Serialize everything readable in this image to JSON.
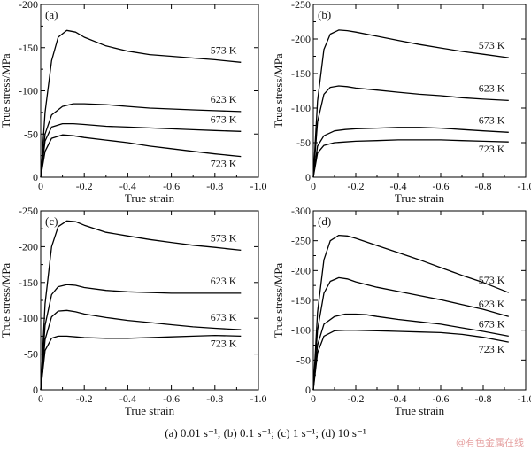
{
  "caption": "(a) 0.01 s⁻¹; (b) 0.1 s⁻¹; (c) 1 s⁻¹; (d) 10 s⁻¹",
  "watermark": "@有色金属在线",
  "colors": {
    "line": "#000000",
    "axis": "#000000",
    "background": "#ffffff"
  },
  "chart_data": [
    {
      "type": "line",
      "panel_label": "(a)",
      "xlabel": "True strain",
      "ylabel": "True stress/MPa",
      "xlim": [
        0,
        -1.0
      ],
      "ylim": [
        0,
        -200
      ],
      "xticks": [
        "0",
        "-0.2",
        "-0.4",
        "-0.6",
        "-0.8",
        "-1.0"
      ],
      "yticks": [
        "0",
        "-50",
        "-100",
        "-150",
        "-200"
      ],
      "grid": false,
      "series": [
        {
          "name": "573 K",
          "x": [
            0,
            -0.02,
            -0.05,
            -0.08,
            -0.12,
            -0.16,
            -0.2,
            -0.3,
            -0.4,
            -0.5,
            -0.6,
            -0.7,
            -0.8,
            -0.92
          ],
          "y": [
            0,
            -75,
            -135,
            -162,
            -170,
            -168,
            -162,
            -152,
            -146,
            -142,
            -140,
            -138,
            -136,
            -133
          ]
        },
        {
          "name": "623 K",
          "x": [
            0,
            -0.02,
            -0.05,
            -0.1,
            -0.15,
            -0.2,
            -0.3,
            -0.4,
            -0.5,
            -0.6,
            -0.7,
            -0.8,
            -0.92
          ],
          "y": [
            0,
            -50,
            -72,
            -82,
            -85,
            -85,
            -84,
            -82,
            -80,
            -79,
            -78,
            -77,
            -76
          ]
        },
        {
          "name": "673 K",
          "x": [
            0,
            -0.02,
            -0.05,
            -0.1,
            -0.15,
            -0.2,
            -0.3,
            -0.4,
            -0.5,
            -0.6,
            -0.7,
            -0.8,
            -0.92
          ],
          "y": [
            0,
            -42,
            -58,
            -62,
            -62,
            -61,
            -59,
            -58,
            -57,
            -56,
            -55,
            -54,
            -53
          ]
        },
        {
          "name": "723 K",
          "x": [
            0,
            -0.02,
            -0.05,
            -0.1,
            -0.15,
            -0.2,
            -0.3,
            -0.4,
            -0.5,
            -0.6,
            -0.7,
            -0.8,
            -0.92
          ],
          "y": [
            0,
            -30,
            -45,
            -49,
            -48,
            -46,
            -43,
            -40,
            -36,
            -33,
            -30,
            -27,
            -24
          ]
        }
      ]
    },
    {
      "type": "line",
      "panel_label": "(b)",
      "xlabel": "True strain",
      "ylabel": "True stress/MPa",
      "xlim": [
        0,
        -1.0
      ],
      "ylim": [
        0,
        -250
      ],
      "xticks": [
        "0",
        "-0.2",
        "-0.4",
        "-0.6",
        "-0.8",
        "-1.0"
      ],
      "yticks": [
        "0",
        "-50",
        "-100",
        "-150",
        "-200",
        "-250"
      ],
      "grid": false,
      "series": [
        {
          "name": "573 K",
          "x": [
            0,
            -0.02,
            -0.05,
            -0.08,
            -0.12,
            -0.16,
            -0.2,
            -0.3,
            -0.4,
            -0.5,
            -0.6,
            -0.7,
            -0.8,
            -0.92
          ],
          "y": [
            0,
            -110,
            -185,
            -207,
            -213,
            -212,
            -210,
            -204,
            -198,
            -192,
            -187,
            -182,
            -178,
            -173
          ]
        },
        {
          "name": "623 K",
          "x": [
            0,
            -0.02,
            -0.05,
            -0.08,
            -0.12,
            -0.16,
            -0.2,
            -0.3,
            -0.4,
            -0.5,
            -0.6,
            -0.7,
            -0.8,
            -0.92
          ],
          "y": [
            0,
            -80,
            -120,
            -130,
            -132,
            -131,
            -129,
            -126,
            -123,
            -120,
            -118,
            -115,
            -113,
            -111
          ]
        },
        {
          "name": "673 K",
          "x": [
            0,
            -0.02,
            -0.05,
            -0.1,
            -0.15,
            -0.2,
            -0.3,
            -0.4,
            -0.45,
            -0.5,
            -0.6,
            -0.7,
            -0.8,
            -0.92
          ],
          "y": [
            0,
            -45,
            -60,
            -67,
            -69,
            -70,
            -71,
            -72,
            -72,
            -72,
            -71,
            -69,
            -67,
            -65
          ]
        },
        {
          "name": "723 K",
          "x": [
            0,
            -0.02,
            -0.05,
            -0.1,
            -0.15,
            -0.2,
            -0.3,
            -0.4,
            -0.5,
            -0.6,
            -0.7,
            -0.8,
            -0.92
          ],
          "y": [
            0,
            -35,
            -46,
            -50,
            -51,
            -52,
            -53,
            -54,
            -54,
            -54,
            -53,
            -52,
            -51
          ]
        }
      ]
    },
    {
      "type": "line",
      "panel_label": "(c)",
      "xlabel": "True strain",
      "ylabel": "True stress/MPa",
      "xlim": [
        0,
        -1.0
      ],
      "ylim": [
        0,
        -250
      ],
      "xticks": [
        "0",
        "-0.2",
        "-0.4",
        "-0.6",
        "-0.8",
        "-1.0"
      ],
      "yticks": [
        "0",
        "-50",
        "-100",
        "-150",
        "-200",
        "-250"
      ],
      "grid": false,
      "series": [
        {
          "name": "573 K",
          "x": [
            0,
            -0.02,
            -0.05,
            -0.08,
            -0.12,
            -0.16,
            -0.2,
            -0.3,
            -0.4,
            -0.5,
            -0.6,
            -0.7,
            -0.8,
            -0.92
          ],
          "y": [
            0,
            -120,
            -200,
            -228,
            -236,
            -235,
            -230,
            -220,
            -215,
            -210,
            -206,
            -202,
            -199,
            -195
          ]
        },
        {
          "name": "623 K",
          "x": [
            0,
            -0.02,
            -0.05,
            -0.08,
            -0.12,
            -0.16,
            -0.2,
            -0.3,
            -0.4,
            -0.5,
            -0.6,
            -0.7,
            -0.8,
            -0.92
          ],
          "y": [
            0,
            -90,
            -133,
            -144,
            -147,
            -146,
            -143,
            -139,
            -137,
            -136,
            -135,
            -135,
            -135,
            -135
          ]
        },
        {
          "name": "673 K",
          "x": [
            0,
            -0.02,
            -0.05,
            -0.08,
            -0.12,
            -0.16,
            -0.2,
            -0.3,
            -0.4,
            -0.5,
            -0.6,
            -0.7,
            -0.8,
            -0.92
          ],
          "y": [
            0,
            -70,
            -102,
            -110,
            -111,
            -109,
            -106,
            -101,
            -97,
            -94,
            -91,
            -88,
            -86,
            -84
          ]
        },
        {
          "name": "723 K",
          "x": [
            0,
            -0.02,
            -0.05,
            -0.08,
            -0.12,
            -0.16,
            -0.2,
            -0.3,
            -0.4,
            -0.5,
            -0.6,
            -0.7,
            -0.8,
            -0.92
          ],
          "y": [
            0,
            -55,
            -72,
            -75,
            -75,
            -74,
            -73,
            -72,
            -72,
            -73,
            -74,
            -75,
            -76,
            -75
          ]
        }
      ]
    },
    {
      "type": "line",
      "panel_label": "(d)",
      "xlabel": "True strain",
      "ylabel": "True stress/MPa",
      "xlim": [
        0,
        -1.0
      ],
      "ylim": [
        0,
        -300
      ],
      "xticks": [
        "0",
        "-0.2",
        "-0.4",
        "-0.6",
        "-0.8",
        "-1.0"
      ],
      "yticks": [
        "0",
        "-50",
        "-100",
        "-150",
        "-200",
        "-250",
        "-300"
      ],
      "grid": false,
      "series": [
        {
          "name": "573 K",
          "x": [
            0,
            -0.02,
            -0.05,
            -0.08,
            -0.12,
            -0.16,
            -0.2,
            -0.3,
            -0.4,
            -0.5,
            -0.6,
            -0.7,
            -0.8,
            -0.92
          ],
          "y": [
            0,
            -130,
            -218,
            -250,
            -259,
            -258,
            -254,
            -242,
            -230,
            -218,
            -205,
            -192,
            -180,
            -163
          ]
        },
        {
          "name": "623 K",
          "x": [
            0,
            -0.02,
            -0.05,
            -0.08,
            -0.12,
            -0.16,
            -0.2,
            -0.3,
            -0.4,
            -0.5,
            -0.6,
            -0.7,
            -0.8,
            -0.92
          ],
          "y": [
            0,
            -100,
            -162,
            -182,
            -188,
            -186,
            -181,
            -172,
            -165,
            -158,
            -151,
            -143,
            -135,
            -123
          ]
        },
        {
          "name": "673 K",
          "x": [
            0,
            -0.02,
            -0.05,
            -0.1,
            -0.15,
            -0.2,
            -0.25,
            -0.3,
            -0.4,
            -0.5,
            -0.6,
            -0.7,
            -0.8,
            -0.92
          ],
          "y": [
            0,
            -75,
            -110,
            -123,
            -127,
            -127,
            -126,
            -123,
            -118,
            -114,
            -110,
            -104,
            -98,
            -90
          ]
        },
        {
          "name": "723 K",
          "x": [
            0,
            -0.02,
            -0.05,
            -0.1,
            -0.15,
            -0.2,
            -0.3,
            -0.4,
            -0.5,
            -0.6,
            -0.7,
            -0.8,
            -0.92
          ],
          "y": [
            0,
            -62,
            -90,
            -99,
            -100,
            -100,
            -99,
            -98,
            -97,
            -96,
            -93,
            -88,
            -80
          ]
        }
      ]
    }
  ]
}
